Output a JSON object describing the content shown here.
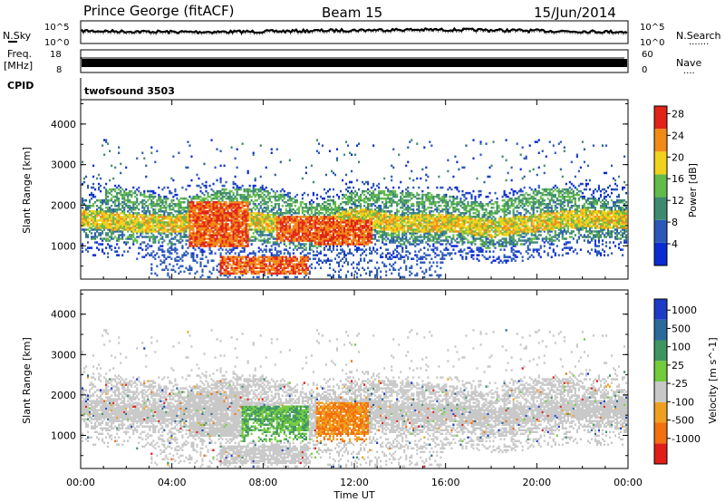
{
  "header": {
    "station": "Prince George (fitACF)",
    "beam": "Beam 15",
    "date": "15/Jun/2014"
  },
  "noise_panel": {
    "left_label": "N.Sky",
    "right_label": "N.Search",
    "right_dots": "·······",
    "y_ticks": [
      "10^5",
      "10^0"
    ]
  },
  "freq_panel": {
    "left_label": "Freq.",
    "left_unit": "[MHz]",
    "left_ticks": [
      "18",
      "8"
    ],
    "right_label": "Nave",
    "right_dots": "····",
    "right_ticks": [
      "60",
      "0"
    ]
  },
  "cpid_panel": {
    "label": "CPID",
    "program": "twofsound 3503"
  },
  "chart_data": [
    {
      "type": "heatmap",
      "quantity": "Power",
      "ylabel": "Slant Range [km]",
      "ylim": [
        180,
        4600
      ],
      "yticks": [
        1000,
        2000,
        3000,
        4000
      ],
      "colorbar_label": "Power [dB]",
      "colorbar_ticks": [
        "4",
        "8",
        "12",
        "16",
        "20",
        "24",
        "28"
      ],
      "colorbar_colors": [
        "#0a2bd4",
        "#2a58b8",
        "#3e8a70",
        "#62bb4a",
        "#f0d21c",
        "#f28a18",
        "#e02418"
      ],
      "x_ticks": [
        "00:00",
        "04:00",
        "08:00",
        "12:00",
        "16:00",
        "20:00",
        "00:00"
      ],
      "bands_hours_vs_km": {
        "main_echo_band_center": [
          [
            0,
            1650
          ],
          [
            2,
            1550
          ],
          [
            4,
            1500
          ],
          [
            6,
            1700
          ],
          [
            8,
            1550
          ],
          [
            10,
            1350
          ],
          [
            12,
            1700
          ],
          [
            14,
            1500
          ],
          [
            16,
            1550
          ],
          [
            18,
            1400
          ],
          [
            20,
            1550
          ],
          [
            22,
            1650
          ],
          [
            24,
            1600
          ]
        ],
        "strong_echo_patch": [
          [
            6.0,
            1500,
            700
          ],
          [
            9.8,
            1400,
            400
          ],
          [
            11.5,
            1300,
            400
          ]
        ]
      }
    },
    {
      "type": "heatmap",
      "quantity": "Velocity",
      "ylabel": "Slant Range [km]",
      "ylim": [
        180,
        4600
      ],
      "yticks": [
        1000,
        2000,
        3000,
        4000
      ],
      "colorbar_label": "Velocity [m s^-1]",
      "colorbar_ticks": [
        "1000",
        "500",
        "100",
        "25",
        "-25",
        "-100",
        "-500",
        "-1000"
      ],
      "colorbar_colors": [
        "#1c3cc8",
        "#2a6a9a",
        "#3e9560",
        "#72cc3c",
        "#c8c8c8",
        "#f0a020",
        "#f27010",
        "#e01e18"
      ]
    }
  ],
  "xaxis": {
    "label": "Time UT",
    "ticks": [
      "00:00",
      "04:00",
      "08:00",
      "12:00",
      "16:00",
      "20:00",
      "00:00"
    ]
  }
}
